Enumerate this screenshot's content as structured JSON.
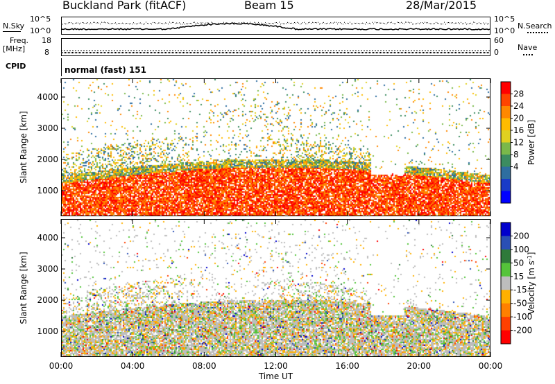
{
  "header": {
    "station": "Buckland Park (fitACF)",
    "beam": "Beam 15",
    "date": "28/Mar/2015"
  },
  "top_panels": {
    "nsky_label": "N.Sky",
    "nsearch_label": "N.Search",
    "freq_label": "Freq.",
    "mhz_label": "[MHz]",
    "nave_label": "Nave",
    "cpid_label": "CPID",
    "cpid_text": "normal (fast) 151",
    "noise_ticks": [
      "10^5",
      "10^0"
    ],
    "freq_ticks": [
      "18",
      "8"
    ],
    "nave_ticks": [
      "60",
      "0"
    ]
  },
  "chart_data": [
    {
      "type": "heatmap",
      "name": "power",
      "ylabel": "Slant Range [km]",
      "xlabel": "",
      "x_ticks": [
        "00:00",
        "04:00",
        "08:00",
        "12:00",
        "16:00",
        "20:00",
        "00:00"
      ],
      "y_ticks": [
        1000,
        2000,
        3000,
        4000
      ],
      "ylim": [
        180,
        4600
      ],
      "colorbar": {
        "label": "Power [dB]",
        "ticks": [
          "28",
          "24",
          "20",
          "16",
          "12",
          "8",
          "4"
        ],
        "colors": [
          "#ff0000",
          "#ff4400",
          "#ff8800",
          "#ffbb00",
          "#e0d020",
          "#7ab84a",
          "#3c8c60",
          "#2e6ea0",
          "#1a3bc8",
          "#0000ff"
        ]
      }
    },
    {
      "type": "heatmap",
      "name": "velocity",
      "ylabel": "Slant Range [km]",
      "xlabel": "Time UT",
      "x_ticks": [
        "00:00",
        "04:00",
        "08:00",
        "12:00",
        "16:00",
        "20:00",
        "00:00"
      ],
      "y_ticks": [
        1000,
        2000,
        3000,
        4000
      ],
      "ylim": [
        180,
        4600
      ],
      "colorbar": {
        "label": "Velocity [m s",
        "label_sup": "-1",
        "label_close": "]",
        "ticks": [
          "200",
          "100",
          "50",
          "15",
          "-15",
          "-50",
          "-100",
          "-200"
        ],
        "colors": [
          "#0000cc",
          "#2a4fb5",
          "#2f7a3a",
          "#55c43a",
          "#bdbdbd",
          "#ffb000",
          "#ff8000",
          "#ff4000",
          "#ff0000"
        ]
      }
    }
  ]
}
